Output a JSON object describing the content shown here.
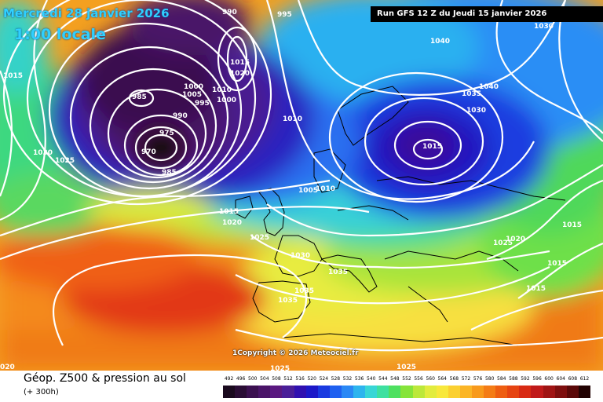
{
  "header": {
    "date": "Mercredi 28 janvier 2026",
    "time": "1:00 locale",
    "run": "Run GFS 12 Z du Jeudi 15 janvier 2026"
  },
  "copyright": "1Copyright © 2026 Meteociel.fr",
  "legend": {
    "title": "Géop. Z500 & pression au sol",
    "subtitle": "(+ 300h)",
    "scale": [
      {
        "value": "492",
        "color": "#1a0a1e"
      },
      {
        "value": "496",
        "color": "#2a0d35"
      },
      {
        "value": "500",
        "color": "#3b1050"
      },
      {
        "value": "504",
        "color": "#4a1468"
      },
      {
        "value": "508",
        "color": "#5a1880"
      },
      {
        "value": "512",
        "color": "#4a1e98"
      },
      {
        "value": "516",
        "color": "#3010b0"
      },
      {
        "value": "520",
        "color": "#1c18c8"
      },
      {
        "value": "524",
        "color": "#1a3ae0"
      },
      {
        "value": "528",
        "color": "#1f60f0"
      },
      {
        "value": "532",
        "color": "#2a88f5"
      },
      {
        "value": "536",
        "color": "#2db4ee"
      },
      {
        "value": "540",
        "color": "#38d6d6"
      },
      {
        "value": "544",
        "color": "#3ee0a0"
      },
      {
        "value": "548",
        "color": "#4ee060"
      },
      {
        "value": "552",
        "color": "#86e43a"
      },
      {
        "value": "556",
        "color": "#bce83a"
      },
      {
        "value": "560",
        "color": "#e2ec3e"
      },
      {
        "value": "564",
        "color": "#f8e83c"
      },
      {
        "value": "568",
        "color": "#fbd030"
      },
      {
        "value": "572",
        "color": "#fbb526"
      },
      {
        "value": "576",
        "color": "#f89a1c"
      },
      {
        "value": "580",
        "color": "#f47c16"
      },
      {
        "value": "584",
        "color": "#ee5e12"
      },
      {
        "value": "588",
        "color": "#e64412"
      },
      {
        "value": "592",
        "color": "#d82a14"
      },
      {
        "value": "596",
        "color": "#c01a1a"
      },
      {
        "value": "600",
        "color": "#a01414"
      },
      {
        "value": "604",
        "color": "#7e0e0e"
      },
      {
        "value": "608",
        "color": "#5a0808"
      },
      {
        "value": "612",
        "color": "#220202"
      }
    ]
  },
  "isobars": [
    {
      "label": "1015",
      "id": "p1"
    },
    {
      "label": "990",
      "id": "p2"
    },
    {
      "label": "995",
      "id": "p3"
    },
    {
      "label": "1030",
      "id": "p4"
    },
    {
      "label": "1040",
      "id": "p5"
    },
    {
      "label": "1015",
      "id": "p6"
    },
    {
      "label": "1020",
      "id": "p7"
    },
    {
      "label": "985",
      "id": "p8"
    },
    {
      "label": "1000",
      "id": "p9"
    },
    {
      "label": "1005",
      "id": "p10"
    },
    {
      "label": "995",
      "id": "p11"
    },
    {
      "label": "1010",
      "id": "p12"
    },
    {
      "label": "1000",
      "id": "p13"
    },
    {
      "label": "1040",
      "id": "p14"
    },
    {
      "label": "1035",
      "id": "p15"
    },
    {
      "label": "1030",
      "id": "p16"
    },
    {
      "label": "990",
      "id": "p17"
    },
    {
      "label": "1010",
      "id": "p18"
    },
    {
      "label": "975",
      "id": "p19"
    },
    {
      "label": "970",
      "id": "p20"
    },
    {
      "label": "1015",
      "id": "p21"
    },
    {
      "label": "1030",
      "id": "p22"
    },
    {
      "label": "1025",
      "id": "p23"
    },
    {
      "label": "985",
      "id": "p24"
    },
    {
      "label": "1005",
      "id": "p25"
    },
    {
      "label": "1015",
      "id": "p26"
    },
    {
      "label": "1020",
      "id": "p27"
    },
    {
      "label": "1025",
      "id": "p28"
    },
    {
      "label": "1030",
      "id": "p29"
    },
    {
      "label": "1035",
      "id": "p30"
    },
    {
      "label": "1035",
      "id": "p31"
    },
    {
      "label": "1035",
      "id": "p32"
    },
    {
      "label": "1020",
      "id": "p33"
    },
    {
      "label": "1025",
      "id": "p34"
    },
    {
      "label": "1015",
      "id": "p35"
    },
    {
      "label": "1015",
      "id": "p36"
    },
    {
      "label": "1015",
      "id": "p37"
    },
    {
      "label": "1025",
      "id": "p38"
    },
    {
      "label": "1025",
      "id": "p39"
    },
    {
      "label": "020",
      "id": "p40"
    },
    {
      "label": "1010",
      "id": "p41"
    }
  ]
}
